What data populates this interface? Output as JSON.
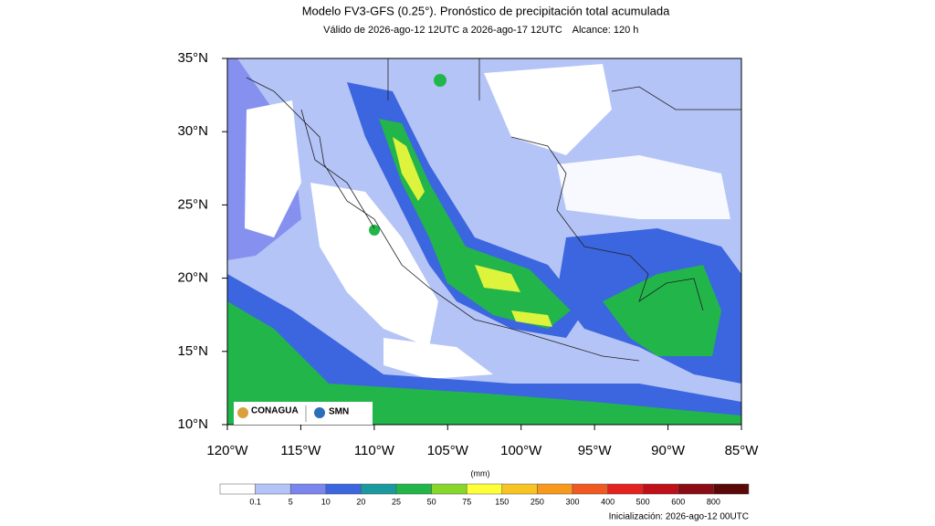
{
  "header": {
    "title": "Modelo FV3-GFS (0.25°). Pronóstico de precipitación total acumulada",
    "valid": "Válido de 2026-ago-12 12UTC a 2026-ago-17 12UTC",
    "range": "Alcance: 120 h"
  },
  "map": {
    "lat_labels": [
      "35°N",
      "30°N",
      "25°N",
      "20°N",
      "15°N",
      "10°N"
    ],
    "lon_labels": [
      "120°W",
      "115°W",
      "110°W",
      "105°W",
      "100°W",
      "95°W",
      "90°W",
      "85°W"
    ],
    "logos": [
      "CONAGUA",
      "SMN"
    ]
  },
  "colorbar": {
    "units": "(mm)",
    "labels": [
      "0.1",
      "5",
      "10",
      "20",
      "25",
      "50",
      "75",
      "150",
      "250",
      "300",
      "400",
      "500",
      "600",
      "800"
    ],
    "colors": [
      "#ffffff",
      "#b4c4f6",
      "#7b85ee",
      "#3b66df",
      "#1a9a9e",
      "#22b64a",
      "#86d62c",
      "#ffff3a",
      "#f8c423",
      "#f7991c",
      "#f05a22",
      "#e42320",
      "#bf101a",
      "#8b0c14",
      "#5a0808"
    ]
  },
  "footer": {
    "init": "Inicialización: 2026-ago-12 00UTC"
  }
}
